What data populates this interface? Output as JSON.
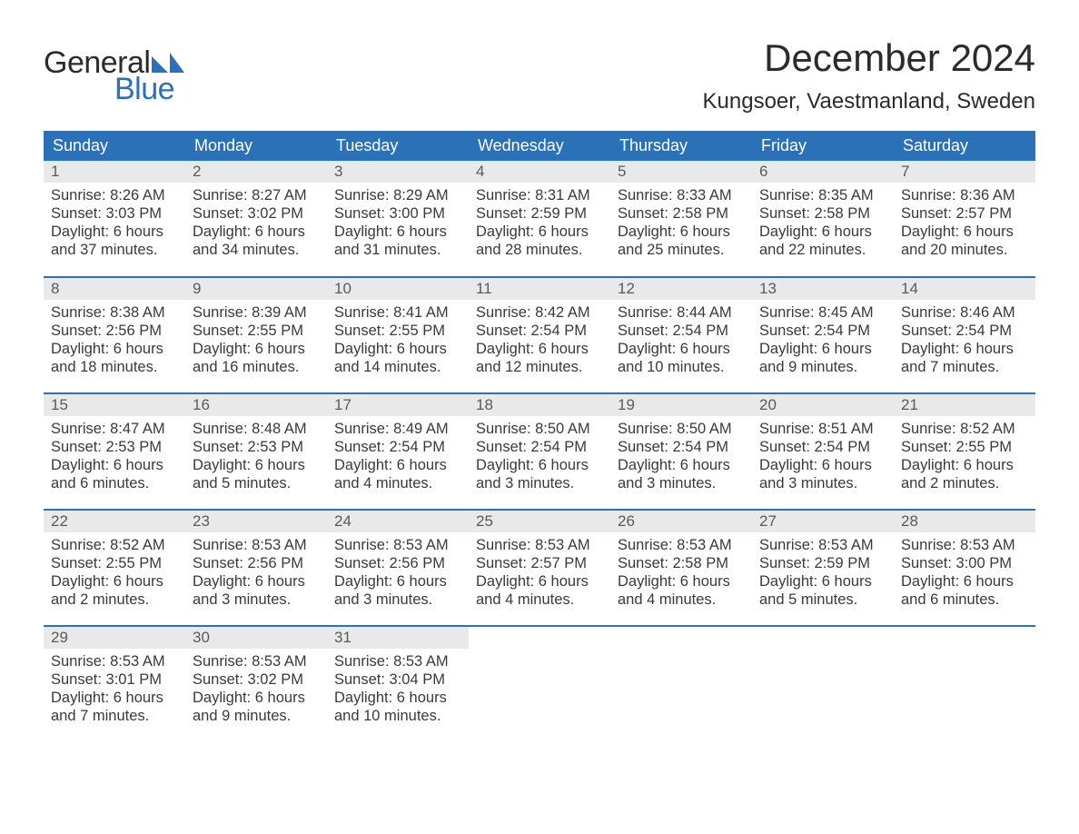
{
  "logo": {
    "text1": "General",
    "text2": "Blue",
    "flag_color": "#2a71b8"
  },
  "title": "December 2024",
  "location": "Kungsoer, Vaestmanland, Sweden",
  "colors": {
    "header_bg": "#2a71b8",
    "header_fg": "#ffffff",
    "daynum_bg": "#e9e9e9",
    "text": "#3a3a3a"
  },
  "day_labels": [
    "Sunday",
    "Monday",
    "Tuesday",
    "Wednesday",
    "Thursday",
    "Friday",
    "Saturday"
  ],
  "weeks": [
    [
      {
        "n": "1",
        "sr": "Sunrise: 8:26 AM",
        "ss": "Sunset: 3:03 PM",
        "d1": "Daylight: 6 hours",
        "d2": "and 37 minutes."
      },
      {
        "n": "2",
        "sr": "Sunrise: 8:27 AM",
        "ss": "Sunset: 3:02 PM",
        "d1": "Daylight: 6 hours",
        "d2": "and 34 minutes."
      },
      {
        "n": "3",
        "sr": "Sunrise: 8:29 AM",
        "ss": "Sunset: 3:00 PM",
        "d1": "Daylight: 6 hours",
        "d2": "and 31 minutes."
      },
      {
        "n": "4",
        "sr": "Sunrise: 8:31 AM",
        "ss": "Sunset: 2:59 PM",
        "d1": "Daylight: 6 hours",
        "d2": "and 28 minutes."
      },
      {
        "n": "5",
        "sr": "Sunrise: 8:33 AM",
        "ss": "Sunset: 2:58 PM",
        "d1": "Daylight: 6 hours",
        "d2": "and 25 minutes."
      },
      {
        "n": "6",
        "sr": "Sunrise: 8:35 AM",
        "ss": "Sunset: 2:58 PM",
        "d1": "Daylight: 6 hours",
        "d2": "and 22 minutes."
      },
      {
        "n": "7",
        "sr": "Sunrise: 8:36 AM",
        "ss": "Sunset: 2:57 PM",
        "d1": "Daylight: 6 hours",
        "d2": "and 20 minutes."
      }
    ],
    [
      {
        "n": "8",
        "sr": "Sunrise: 8:38 AM",
        "ss": "Sunset: 2:56 PM",
        "d1": "Daylight: 6 hours",
        "d2": "and 18 minutes."
      },
      {
        "n": "9",
        "sr": "Sunrise: 8:39 AM",
        "ss": "Sunset: 2:55 PM",
        "d1": "Daylight: 6 hours",
        "d2": "and 16 minutes."
      },
      {
        "n": "10",
        "sr": "Sunrise: 8:41 AM",
        "ss": "Sunset: 2:55 PM",
        "d1": "Daylight: 6 hours",
        "d2": "and 14 minutes."
      },
      {
        "n": "11",
        "sr": "Sunrise: 8:42 AM",
        "ss": "Sunset: 2:54 PM",
        "d1": "Daylight: 6 hours",
        "d2": "and 12 minutes."
      },
      {
        "n": "12",
        "sr": "Sunrise: 8:44 AM",
        "ss": "Sunset: 2:54 PM",
        "d1": "Daylight: 6 hours",
        "d2": "and 10 minutes."
      },
      {
        "n": "13",
        "sr": "Sunrise: 8:45 AM",
        "ss": "Sunset: 2:54 PM",
        "d1": "Daylight: 6 hours",
        "d2": "and 9 minutes."
      },
      {
        "n": "14",
        "sr": "Sunrise: 8:46 AM",
        "ss": "Sunset: 2:54 PM",
        "d1": "Daylight: 6 hours",
        "d2": "and 7 minutes."
      }
    ],
    [
      {
        "n": "15",
        "sr": "Sunrise: 8:47 AM",
        "ss": "Sunset: 2:53 PM",
        "d1": "Daylight: 6 hours",
        "d2": "and 6 minutes."
      },
      {
        "n": "16",
        "sr": "Sunrise: 8:48 AM",
        "ss": "Sunset: 2:53 PM",
        "d1": "Daylight: 6 hours",
        "d2": "and 5 minutes."
      },
      {
        "n": "17",
        "sr": "Sunrise: 8:49 AM",
        "ss": "Sunset: 2:54 PM",
        "d1": "Daylight: 6 hours",
        "d2": "and 4 minutes."
      },
      {
        "n": "18",
        "sr": "Sunrise: 8:50 AM",
        "ss": "Sunset: 2:54 PM",
        "d1": "Daylight: 6 hours",
        "d2": "and 3 minutes."
      },
      {
        "n": "19",
        "sr": "Sunrise: 8:50 AM",
        "ss": "Sunset: 2:54 PM",
        "d1": "Daylight: 6 hours",
        "d2": "and 3 minutes."
      },
      {
        "n": "20",
        "sr": "Sunrise: 8:51 AM",
        "ss": "Sunset: 2:54 PM",
        "d1": "Daylight: 6 hours",
        "d2": "and 3 minutes."
      },
      {
        "n": "21",
        "sr": "Sunrise: 8:52 AM",
        "ss": "Sunset: 2:55 PM",
        "d1": "Daylight: 6 hours",
        "d2": "and 2 minutes."
      }
    ],
    [
      {
        "n": "22",
        "sr": "Sunrise: 8:52 AM",
        "ss": "Sunset: 2:55 PM",
        "d1": "Daylight: 6 hours",
        "d2": "and 2 minutes."
      },
      {
        "n": "23",
        "sr": "Sunrise: 8:53 AM",
        "ss": "Sunset: 2:56 PM",
        "d1": "Daylight: 6 hours",
        "d2": "and 3 minutes."
      },
      {
        "n": "24",
        "sr": "Sunrise: 8:53 AM",
        "ss": "Sunset: 2:56 PM",
        "d1": "Daylight: 6 hours",
        "d2": "and 3 minutes."
      },
      {
        "n": "25",
        "sr": "Sunrise: 8:53 AM",
        "ss": "Sunset: 2:57 PM",
        "d1": "Daylight: 6 hours",
        "d2": "and 4 minutes."
      },
      {
        "n": "26",
        "sr": "Sunrise: 8:53 AM",
        "ss": "Sunset: 2:58 PM",
        "d1": "Daylight: 6 hours",
        "d2": "and 4 minutes."
      },
      {
        "n": "27",
        "sr": "Sunrise: 8:53 AM",
        "ss": "Sunset: 2:59 PM",
        "d1": "Daylight: 6 hours",
        "d2": "and 5 minutes."
      },
      {
        "n": "28",
        "sr": "Sunrise: 8:53 AM",
        "ss": "Sunset: 3:00 PM",
        "d1": "Daylight: 6 hours",
        "d2": "and 6 minutes."
      }
    ],
    [
      {
        "n": "29",
        "sr": "Sunrise: 8:53 AM",
        "ss": "Sunset: 3:01 PM",
        "d1": "Daylight: 6 hours",
        "d2": "and 7 minutes."
      },
      {
        "n": "30",
        "sr": "Sunrise: 8:53 AM",
        "ss": "Sunset: 3:02 PM",
        "d1": "Daylight: 6 hours",
        "d2": "and 9 minutes."
      },
      {
        "n": "31",
        "sr": "Sunrise: 8:53 AM",
        "ss": "Sunset: 3:04 PM",
        "d1": "Daylight: 6 hours",
        "d2": "and 10 minutes."
      },
      null,
      null,
      null,
      null
    ]
  ]
}
